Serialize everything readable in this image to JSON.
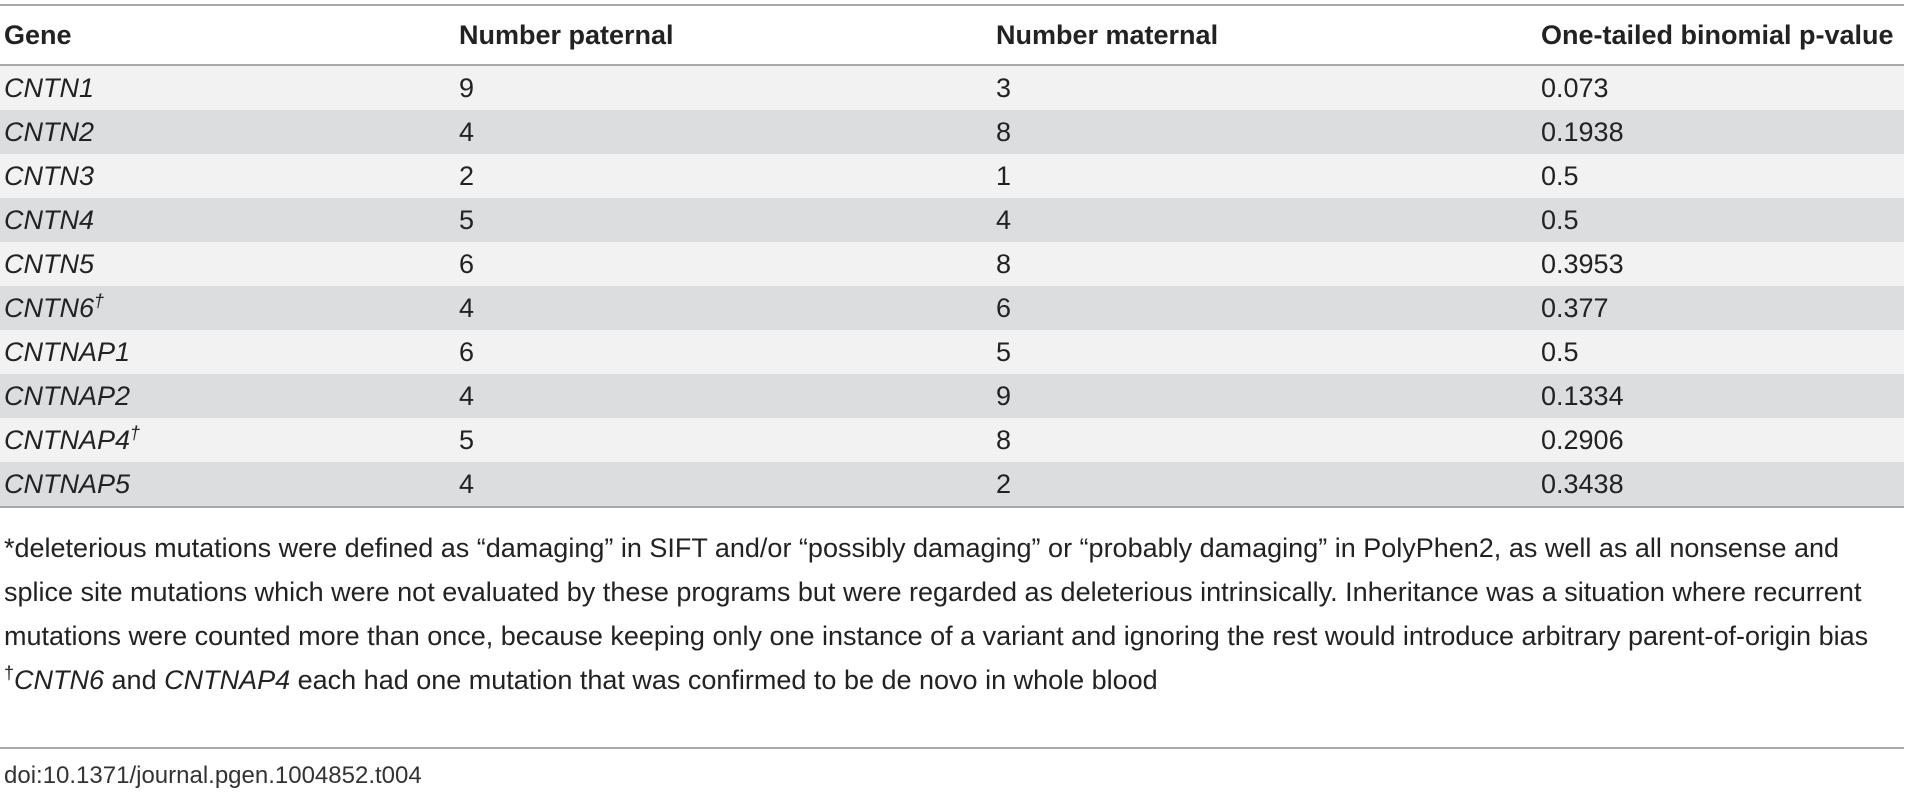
{
  "table": {
    "headers": [
      "Gene",
      "Number paternal",
      "Number maternal",
      "One-tailed binomial p-value"
    ],
    "rows": [
      {
        "gene": "CNTN1",
        "mark": "",
        "paternal": "9",
        "maternal": "3",
        "p": "0.073"
      },
      {
        "gene": "CNTN2",
        "mark": "",
        "paternal": "4",
        "maternal": "8",
        "p": "0.1938"
      },
      {
        "gene": "CNTN3",
        "mark": "",
        "paternal": "2",
        "maternal": "1",
        "p": "0.5"
      },
      {
        "gene": "CNTN4",
        "mark": "",
        "paternal": "5",
        "maternal": "4",
        "p": "0.5"
      },
      {
        "gene": "CNTN5",
        "mark": "",
        "paternal": "6",
        "maternal": "8",
        "p": "0.3953"
      },
      {
        "gene": "CNTN6",
        "mark": "†",
        "paternal": "4",
        "maternal": "6",
        "p": "0.377"
      },
      {
        "gene": "CNTNAP1",
        "mark": "",
        "paternal": "6",
        "maternal": "5",
        "p": "0.5"
      },
      {
        "gene": "CNTNAP2",
        "mark": "",
        "paternal": "4",
        "maternal": "9",
        "p": "0.1334"
      },
      {
        "gene": "CNTNAP4",
        "mark": "†",
        "paternal": "5",
        "maternal": "8",
        "p": "0.2906"
      },
      {
        "gene": "CNTNAP5",
        "mark": "",
        "paternal": "4",
        "maternal": "2",
        "p": "0.3438"
      }
    ]
  },
  "footnotes": {
    "star": "*deleterious mutations were defined as “damaging” in SIFT and/or “possibly damaging” or “probably damaging” in PolyPhen2, as well as all nonsense and splice site mutations which were not evaluated by these programs but were regarded as deleterious intrinsically. Inheritance was a situation where recurrent mutations were counted more than once, because keeping only one instance of a variant and ignoring the rest would introduce arbitrary parent-of-origin bias",
    "dagger": {
      "mark": "†",
      "gene_a": "CNTN6",
      "and": " and ",
      "gene_b": "CNTNAP4",
      "rest": " each had one mutation that was confirmed to be de novo in whole blood"
    }
  },
  "doi": "doi:10.1371/journal.pgen.1004852.t004"
}
